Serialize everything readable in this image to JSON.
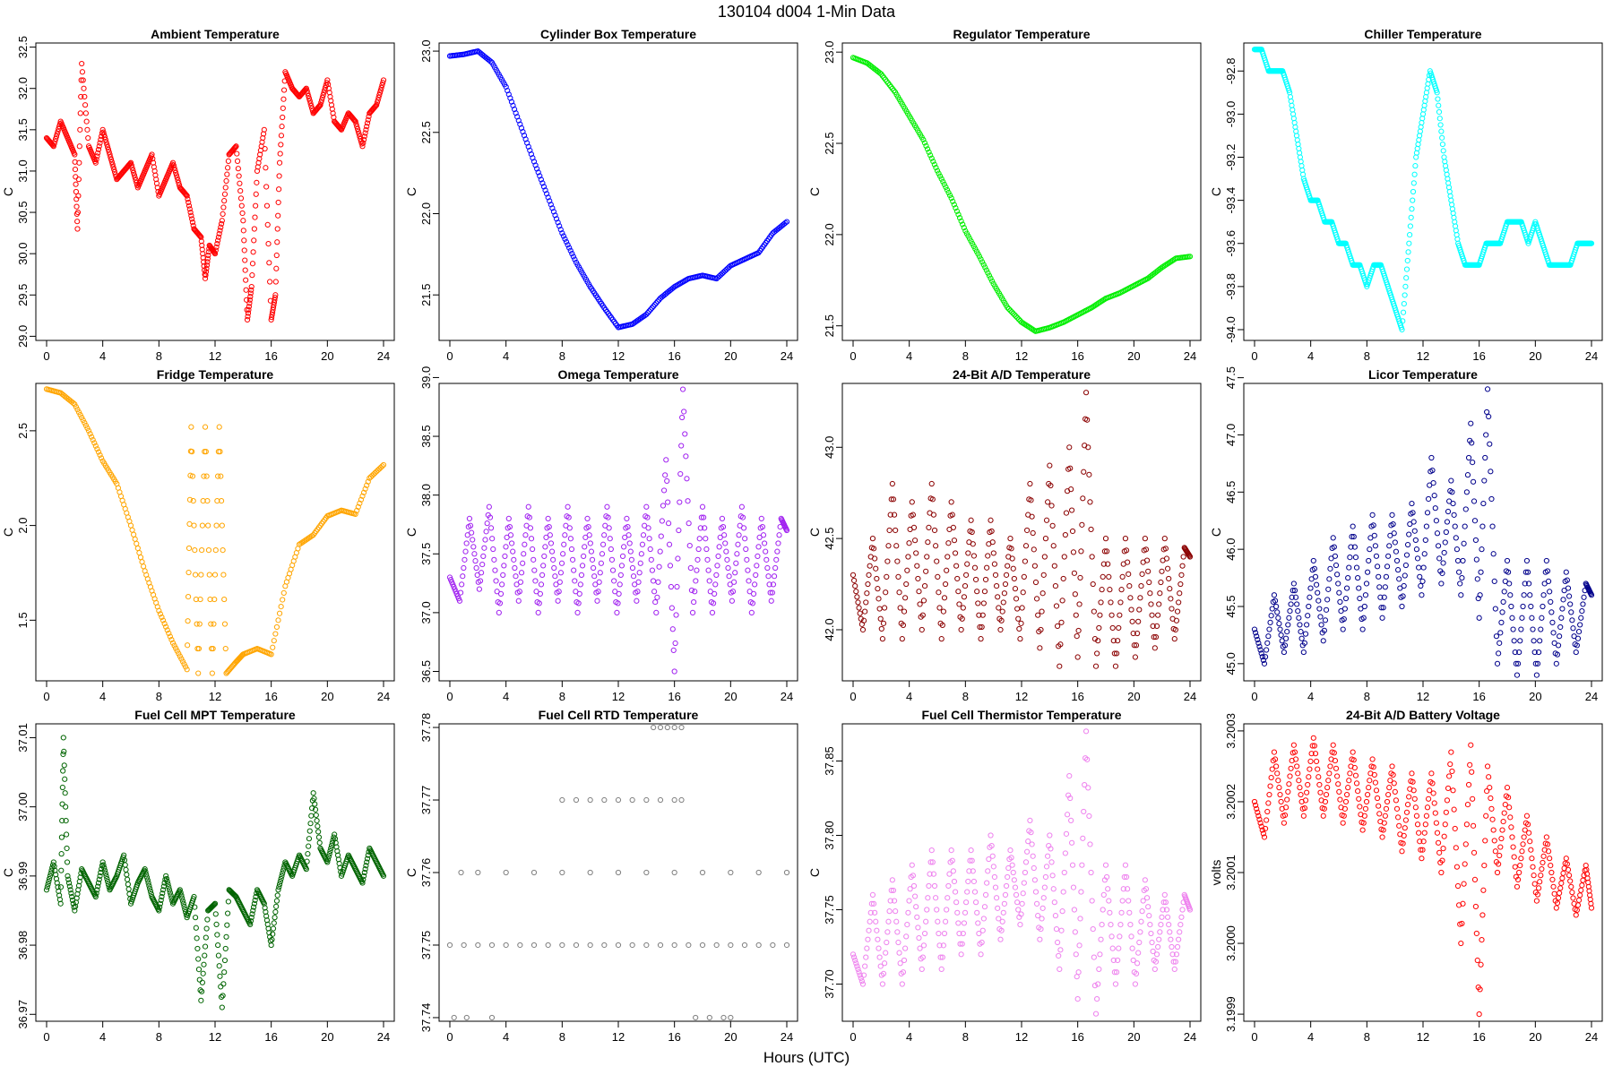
{
  "figure": {
    "title": "130104   d004   1-Min Data",
    "xlabel": "Hours (UTC)"
  },
  "chart_data": [
    {
      "type": "scatter",
      "title": "Ambient Temperature",
      "ylabel": "C",
      "color": "#ff0000",
      "xlim": [
        0,
        24
      ],
      "ylim": [
        28.95,
        32.55
      ],
      "xticks": [
        "0",
        "4",
        "8",
        "12",
        "16",
        "20",
        "24"
      ],
      "yticks": [
        "29.0",
        "29.5",
        "30.0",
        "30.5",
        "31.0",
        "31.5",
        "32.0",
        "32.5"
      ],
      "x": [
        0,
        0.5,
        1,
        1.5,
        2,
        2.2,
        2.5,
        3,
        3.5,
        4,
        4.5,
        5,
        5.5,
        6,
        6.5,
        7,
        7.5,
        8,
        8.5,
        9,
        9.5,
        10,
        10.5,
        11,
        11.3,
        11.6,
        12,
        12.5,
        13,
        13.5,
        14,
        14.3,
        14.6,
        15,
        15.5,
        16,
        16.3,
        16.6,
        17,
        17.5,
        18,
        18.5,
        19,
        19.5,
        20,
        20.5,
        21,
        21.5,
        22,
        22.5,
        23,
        23.5,
        24
      ],
      "y": [
        31.4,
        31.3,
        31.6,
        31.4,
        31.2,
        30.3,
        32.3,
        31.3,
        31.1,
        31.5,
        31.2,
        30.9,
        31.0,
        31.1,
        30.8,
        31.0,
        31.2,
        30.7,
        30.9,
        31.1,
        30.8,
        30.7,
        30.3,
        30.2,
        29.7,
        30.1,
        30.0,
        30.4,
        31.2,
        31.3,
        30.4,
        29.2,
        29.6,
        31.0,
        31.5,
        29.2,
        29.5,
        31.1,
        32.2,
        32.0,
        31.9,
        32.0,
        31.7,
        31.8,
        32.1,
        31.6,
        31.5,
        31.7,
        31.6,
        31.3,
        31.7,
        31.8,
        32.1
      ]
    },
    {
      "type": "scatter",
      "title": "Cylinder Box Temperature",
      "ylabel": "C",
      "color": "#0000ff",
      "xlim": [
        0,
        24
      ],
      "ylim": [
        21.22,
        23.05
      ],
      "xticks": [
        "0",
        "4",
        "8",
        "12",
        "16",
        "20",
        "24"
      ],
      "yticks": [
        "21.5",
        "22.0",
        "22.5",
        "23.0"
      ],
      "x": [
        0,
        1,
        2,
        3,
        4,
        5,
        6,
        7,
        8,
        9,
        10,
        11,
        12,
        13,
        14,
        15,
        16,
        17,
        18,
        19,
        20,
        21,
        22,
        23,
        24
      ],
      "y": [
        22.97,
        22.98,
        23.0,
        22.93,
        22.78,
        22.55,
        22.32,
        22.1,
        21.88,
        21.7,
        21.55,
        21.42,
        21.3,
        21.32,
        21.38,
        21.48,
        21.55,
        21.6,
        21.62,
        21.6,
        21.68,
        21.72,
        21.76,
        21.88,
        21.95
      ]
    },
    {
      "type": "scatter",
      "title": "Regulator Temperature",
      "ylabel": "C",
      "color": "#00ee00",
      "xlim": [
        0,
        24
      ],
      "ylim": [
        21.42,
        23.05
      ],
      "xticks": [
        "0",
        "4",
        "8",
        "12",
        "16",
        "20",
        "24"
      ],
      "yticks": [
        "21.5",
        "22.0",
        "22.5",
        "23.0"
      ],
      "x": [
        0,
        1,
        2,
        3,
        4,
        5,
        6,
        7,
        8,
        9,
        10,
        11,
        12,
        13,
        14,
        15,
        16,
        17,
        18,
        19,
        20,
        21,
        22,
        23,
        24
      ],
      "y": [
        22.97,
        22.94,
        22.88,
        22.78,
        22.65,
        22.52,
        22.35,
        22.2,
        22.02,
        21.88,
        21.73,
        21.6,
        21.52,
        21.47,
        21.49,
        21.52,
        21.56,
        21.6,
        21.65,
        21.68,
        21.72,
        21.76,
        21.82,
        21.87,
        21.88
      ]
    },
    {
      "type": "scatter",
      "title": "Chiller Temperature",
      "ylabel": "C",
      "color": "#00ffff",
      "xlim": [
        0,
        24
      ],
      "ylim": [
        -94.05,
        -92.67
      ],
      "xticks": [
        "0",
        "4",
        "8",
        "12",
        "16",
        "20",
        "24"
      ],
      "yticks": [
        "-94.0",
        "-93.8",
        "-93.6",
        "-93.4",
        "-93.2",
        "-93.0",
        "-92.8"
      ],
      "x": [
        0,
        0.5,
        1,
        1.5,
        2,
        2.5,
        3,
        3.5,
        4,
        4.5,
        5,
        5.5,
        6,
        6.5,
        7,
        7.5,
        8,
        8.5,
        9,
        9.5,
        10,
        10.5,
        11,
        11.5,
        12,
        12.5,
        13,
        13.5,
        14,
        14.5,
        15,
        15.5,
        16,
        16.5,
        17,
        17.5,
        18,
        18.5,
        19,
        19.5,
        20,
        20.5,
        21,
        21.5,
        22,
        22.5,
        23,
        23.5,
        24
      ],
      "y": [
        -92.7,
        -92.7,
        -92.8,
        -92.8,
        -92.8,
        -92.9,
        -93.1,
        -93.3,
        -93.4,
        -93.4,
        -93.5,
        -93.5,
        -93.6,
        -93.6,
        -93.7,
        -93.7,
        -93.8,
        -93.7,
        -93.7,
        -93.8,
        -93.9,
        -94.0,
        -93.6,
        -93.2,
        -93.0,
        -92.8,
        -92.9,
        -93.2,
        -93.4,
        -93.6,
        -93.7,
        -93.7,
        -93.7,
        -93.6,
        -93.6,
        -93.6,
        -93.5,
        -93.5,
        -93.5,
        -93.6,
        -93.5,
        -93.6,
        -93.7,
        -93.7,
        -93.7,
        -93.7,
        -93.6,
        -93.6,
        -93.6
      ]
    },
    {
      "type": "scatter",
      "title": "Fridge Temperature",
      "ylabel": "C",
      "color": "#ffa500",
      "xlim": [
        0,
        24
      ],
      "ylim": [
        1.18,
        2.75
      ],
      "xticks": [
        "0",
        "4",
        "8",
        "12",
        "16",
        "20",
        "24"
      ],
      "yticks": [
        "1.5",
        "2.0",
        "2.5"
      ],
      "x": [
        0,
        1,
        2,
        3,
        4,
        5,
        6,
        7,
        8,
        9,
        10,
        10.3,
        10.8,
        11.3,
        11.8,
        12.3,
        12.8,
        13.5,
        14,
        15,
        16,
        17,
        18,
        19,
        20,
        21,
        22,
        23,
        24
      ],
      "y": [
        2.72,
        2.7,
        2.64,
        2.5,
        2.34,
        2.22,
        2.0,
        1.76,
        1.55,
        1.38,
        1.24,
        2.52,
        1.22,
        2.52,
        1.22,
        2.52,
        1.22,
        1.28,
        1.32,
        1.35,
        1.32,
        1.68,
        1.9,
        1.95,
        2.05,
        2.08,
        2.06,
        2.25,
        2.32
      ]
    },
    {
      "type": "scatter",
      "title": "Omega Temperature",
      "ylabel": "C",
      "color": "#a020f0",
      "xlim": [
        0,
        24
      ],
      "ylim": [
        36.42,
        38.95
      ],
      "xticks": [
        "0",
        "4",
        "8",
        "12",
        "16",
        "20",
        "24"
      ],
      "yticks": [
        "36.5",
        "37.0",
        "37.5",
        "38.0",
        "38.5",
        "39.0"
      ],
      "amplitude_note": "oscillating ~37.0–37.9, spike near hour 16",
      "x": [
        0,
        0.7,
        1.4,
        2.1,
        2.8,
        3.5,
        4.2,
        4.9,
        5.6,
        6.3,
        7,
        7.7,
        8.4,
        9.1,
        9.8,
        10.5,
        11.2,
        11.9,
        12.6,
        13.3,
        14,
        14.7,
        15.4,
        16,
        16.6,
        17.3,
        18,
        18.7,
        19.4,
        20.1,
        20.8,
        21.5,
        22.2,
        22.9,
        23.6,
        24
      ],
      "y": [
        37.3,
        37.1,
        37.8,
        37.2,
        37.9,
        37.0,
        37.8,
        37.1,
        37.9,
        37.0,
        37.8,
        37.1,
        37.9,
        37.0,
        37.8,
        37.1,
        37.9,
        37.0,
        37.8,
        37.1,
        37.9,
        37.0,
        38.3,
        36.5,
        38.9,
        37.0,
        37.9,
        37.0,
        37.8,
        37.1,
        37.9,
        37.0,
        37.8,
        37.1,
        37.8,
        37.7
      ]
    },
    {
      "type": "scatter",
      "title": "24-Bit A/D Temperature",
      "ylabel": "C",
      "color": "#8b0000",
      "xlim": [
        0,
        24
      ],
      "ylim": [
        41.72,
        43.35
      ],
      "xticks": [
        "0",
        "4",
        "8",
        "12",
        "16",
        "20",
        "24"
      ],
      "yticks": [
        "42.0",
        "42.5",
        "43.0"
      ],
      "x": [
        0,
        0.7,
        1.4,
        2.1,
        2.8,
        3.5,
        4.2,
        4.9,
        5.6,
        6.3,
        7,
        7.7,
        8.4,
        9.1,
        9.8,
        10.5,
        11.2,
        11.9,
        12.6,
        13.3,
        14,
        14.7,
        15.4,
        16,
        16.6,
        17.3,
        18,
        18.7,
        19.4,
        20.1,
        20.8,
        21.5,
        22.2,
        22.9,
        23.6,
        24
      ],
      "y": [
        42.3,
        42.0,
        42.5,
        41.95,
        42.8,
        41.95,
        42.7,
        42.0,
        42.8,
        41.95,
        42.7,
        42.0,
        42.6,
        41.95,
        42.6,
        42.0,
        42.5,
        41.95,
        42.8,
        41.9,
        42.9,
        41.8,
        43.0,
        41.85,
        43.3,
        41.8,
        42.5,
        41.8,
        42.5,
        41.85,
        42.5,
        41.9,
        42.5,
        41.95,
        42.45,
        42.4
      ]
    },
    {
      "type": "scatter",
      "title": "Licor Temperature",
      "ylabel": "C",
      "color": "#00008b",
      "xlim": [
        0,
        24
      ],
      "ylim": [
        44.85,
        47.45
      ],
      "xticks": [
        "0",
        "4",
        "8",
        "12",
        "16",
        "20",
        "24"
      ],
      "yticks": [
        "45.0",
        "45.5",
        "46.0",
        "46.5",
        "47.0",
        "47.5"
      ],
      "x": [
        0,
        0.7,
        1.4,
        2.1,
        2.8,
        3.5,
        4.2,
        4.9,
        5.6,
        6.3,
        7,
        7.7,
        8.4,
        9.1,
        9.8,
        10.5,
        11.2,
        11.9,
        12.6,
        13.3,
        14,
        14.7,
        15.4,
        16,
        16.6,
        17.3,
        18,
        18.7,
        19.4,
        20.1,
        20.8,
        21.5,
        22.2,
        22.9,
        23.6,
        24
      ],
      "y": [
        45.3,
        45.0,
        45.6,
        45.1,
        45.7,
        45.1,
        45.9,
        45.2,
        46.1,
        45.3,
        46.2,
        45.3,
        46.3,
        45.4,
        46.3,
        45.5,
        46.4,
        45.6,
        46.8,
        45.7,
        46.6,
        45.6,
        47.1,
        45.4,
        47.4,
        45.0,
        45.9,
        44.9,
        45.9,
        44.9,
        45.9,
        45.0,
        45.8,
        45.1,
        45.7,
        45.6
      ]
    },
    {
      "type": "scatter",
      "title": "Fuel Cell MPT Temperature",
      "ylabel": "C",
      "color": "#006400",
      "xlim": [
        0,
        24
      ],
      "ylim": [
        36.969,
        37.012
      ],
      "xticks": [
        "0",
        "4",
        "8",
        "12",
        "16",
        "20",
        "24"
      ],
      "yticks": [
        "36.97",
        "36.98",
        "36.99",
        "37.00",
        "37.01"
      ],
      "x": [
        0,
        0.5,
        1,
        1.2,
        1.5,
        2,
        2.5,
        3,
        3.5,
        4,
        4.5,
        5,
        5.5,
        6,
        6.5,
        7,
        7.5,
        8,
        8.5,
        9,
        9.5,
        10,
        10.5,
        11,
        11.5,
        12,
        12.5,
        13,
        13.5,
        14,
        14.5,
        15,
        15.5,
        16,
        16.5,
        17,
        17.5,
        18,
        18.5,
        19,
        19.5,
        20,
        20.5,
        21,
        21.5,
        22,
        22.5,
        23,
        23.5,
        24
      ],
      "y": [
        36.988,
        36.992,
        36.986,
        37.01,
        36.99,
        36.985,
        36.991,
        36.989,
        36.987,
        36.992,
        36.988,
        36.99,
        36.993,
        36.986,
        36.989,
        36.991,
        36.987,
        36.985,
        36.99,
        36.986,
        36.988,
        36.984,
        36.987,
        36.972,
        36.985,
        36.986,
        36.971,
        36.988,
        36.987,
        36.985,
        36.983,
        36.988,
        36.986,
        36.98,
        36.988,
        36.992,
        36.99,
        36.993,
        36.991,
        37.002,
        36.994,
        36.992,
        36.996,
        36.99,
        36.993,
        36.991,
        36.989,
        36.994,
        36.992,
        36.99
      ]
    },
    {
      "type": "scatter",
      "title": "Fuel Cell RTD Temperature",
      "ylabel": "C",
      "color": "#808080",
      "xlim": [
        0,
        24
      ],
      "ylim": [
        37.7395,
        37.7805
      ],
      "xticks": [
        "0",
        "4",
        "8",
        "12",
        "16",
        "20",
        "24"
      ],
      "yticks": [
        "37.74",
        "37.75",
        "37.76",
        "37.77",
        "37.78"
      ],
      "x": [
        0.3,
        1.2,
        3,
        0,
        1,
        2,
        3,
        4,
        5,
        6,
        7,
        8,
        9,
        10,
        11,
        12,
        13,
        14,
        15,
        16,
        17,
        18,
        19,
        20,
        21,
        22,
        23,
        24,
        0.8,
        2,
        4,
        6,
        8,
        10,
        12,
        14,
        16,
        18,
        20,
        22,
        24,
        8,
        9,
        10,
        11,
        12,
        13,
        14,
        15,
        16,
        16.5,
        14.5,
        15,
        15.5,
        16,
        16.5,
        17.5,
        18.5,
        19.5,
        20
      ],
      "y": [
        37.74,
        37.74,
        37.74,
        37.75,
        37.75,
        37.75,
        37.75,
        37.75,
        37.75,
        37.75,
        37.75,
        37.75,
        37.75,
        37.75,
        37.75,
        37.75,
        37.75,
        37.75,
        37.75,
        37.75,
        37.75,
        37.75,
        37.75,
        37.75,
        37.75,
        37.75,
        37.75,
        37.75,
        37.76,
        37.76,
        37.76,
        37.76,
        37.76,
        37.76,
        37.76,
        37.76,
        37.76,
        37.76,
        37.76,
        37.76,
        37.76,
        37.77,
        37.77,
        37.77,
        37.77,
        37.77,
        37.77,
        37.77,
        37.77,
        37.77,
        37.77,
        37.78,
        37.78,
        37.78,
        37.78,
        37.78,
        37.74,
        37.74,
        37.74,
        37.74
      ]
    },
    {
      "type": "scatter",
      "title": "Fuel Cell Thermistor Temperature",
      "ylabel": "C",
      "color": "#ee82ee",
      "xlim": [
        0,
        24
      ],
      "ylim": [
        37.675,
        37.875
      ],
      "xticks": [
        "0",
        "4",
        "8",
        "12",
        "16",
        "20",
        "24"
      ],
      "yticks": [
        "37.70",
        "37.75",
        "37.80",
        "37.85"
      ],
      "x": [
        0,
        0.7,
        1.4,
        2.1,
        2.8,
        3.5,
        4.2,
        4.9,
        5.6,
        6.3,
        7,
        7.7,
        8.4,
        9.1,
        9.8,
        10.5,
        11.2,
        11.9,
        12.6,
        13.3,
        14,
        14.7,
        15.4,
        16,
        16.6,
        17.3,
        18,
        18.7,
        19.4,
        20.1,
        20.8,
        21.5,
        22.2,
        22.9,
        23.6,
        24
      ],
      "y": [
        37.72,
        37.7,
        37.76,
        37.7,
        37.77,
        37.7,
        37.78,
        37.71,
        37.79,
        37.71,
        37.79,
        37.72,
        37.79,
        37.72,
        37.8,
        37.73,
        37.79,
        37.74,
        37.81,
        37.73,
        37.8,
        37.71,
        37.84,
        37.69,
        37.87,
        37.68,
        37.78,
        37.7,
        37.78,
        37.7,
        37.77,
        37.71,
        37.76,
        37.71,
        37.76,
        37.75
      ]
    },
    {
      "type": "scatter",
      "title": "24-Bit A/D Battery Voltage",
      "ylabel": "volts",
      "color": "#ff0000",
      "xlim": [
        0,
        24
      ],
      "ylim": [
        3.19989,
        3.20031
      ],
      "xticks": [
        "0",
        "4",
        "8",
        "12",
        "16",
        "20",
        "24"
      ],
      "yticks": [
        "3.1999",
        "3.2000",
        "3.2001",
        "3.2002",
        "3.2003"
      ],
      "x": [
        0,
        0.7,
        1.4,
        2.1,
        2.8,
        3.5,
        4.2,
        4.9,
        5.6,
        6.3,
        7,
        7.7,
        8.4,
        9.1,
        9.8,
        10.5,
        11.2,
        11.9,
        12.6,
        13.3,
        14,
        14.7,
        15.4,
        16,
        16.6,
        17.3,
        18,
        18.7,
        19.4,
        20.1,
        20.8,
        21.5,
        22.2,
        22.9,
        23.6,
        24
      ],
      "y": [
        3.2002,
        3.20015,
        3.20027,
        3.20017,
        3.20028,
        3.20018,
        3.20029,
        3.20018,
        3.20028,
        3.20017,
        3.20027,
        3.20016,
        3.20026,
        3.20015,
        3.20025,
        3.20013,
        3.20024,
        3.20012,
        3.20024,
        3.2001,
        3.20027,
        3.2,
        3.20028,
        3.1999,
        3.20025,
        3.2001,
        3.20022,
        3.20008,
        3.20018,
        3.20006,
        3.20015,
        3.20005,
        3.20012,
        3.20004,
        3.20011,
        3.20005
      ]
    }
  ]
}
